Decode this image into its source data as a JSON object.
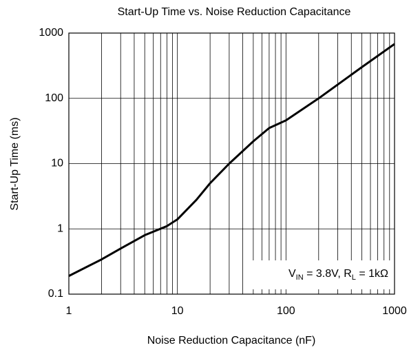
{
  "chart_data": {
    "type": "line",
    "title": "Start-Up Time vs. Noise Reduction Capacitance",
    "x_label": "Noise Reduction Capacitance (nF)",
    "y_label": "Start-Up Time (ms)",
    "x_scale": "log",
    "y_scale": "log",
    "xlim": [
      1,
      1000
    ],
    "ylim": [
      0.1,
      1000
    ],
    "xticks": [
      1,
      10,
      100,
      1000
    ],
    "yticks": [
      0.1,
      1,
      10,
      100,
      1000
    ],
    "grid": true,
    "x_minor_grid": true,
    "y_minor_grid": false,
    "x": [
      1,
      2,
      3,
      5,
      8,
      10,
      15,
      20,
      30,
      50,
      70,
      100,
      200,
      500,
      1000
    ],
    "series": [
      {
        "color": "#000000",
        "values": [
          0.19,
          0.34,
          0.5,
          0.8,
          1.1,
          1.4,
          2.8,
          5,
          10,
          22,
          35,
          46,
          100,
          300,
          680
        ]
      }
    ],
    "annotation": [
      {
        "text": "V"
      },
      {
        "text": "IN",
        "sub": true
      },
      {
        "text": " = 3.8V, R"
      },
      {
        "text": "L",
        "sub": true
      },
      {
        "text": " = 1kΩ"
      }
    ]
  }
}
